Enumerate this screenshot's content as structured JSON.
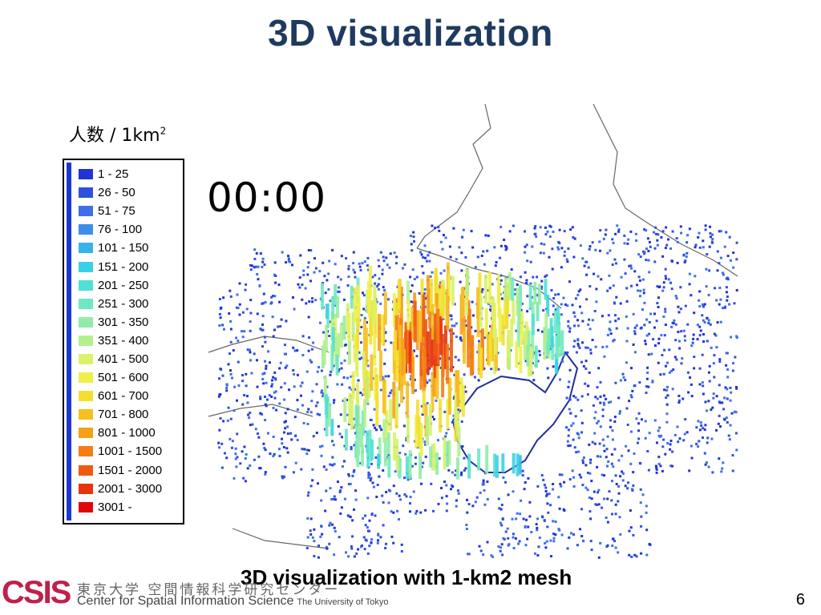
{
  "slide": {
    "title": "3D visualization",
    "caption": "3D visualization with 1-km2 mesh",
    "page_number": "6"
  },
  "legend": {
    "title": "人数 / 1km",
    "title_sup": "2",
    "items": [
      {
        "label": "1 - 25",
        "color": "#2233d6"
      },
      {
        "label": "26 - 50",
        "color": "#2f4fe0"
      },
      {
        "label": "51 - 75",
        "color": "#3f6ee8"
      },
      {
        "label": "76 - 100",
        "color": "#3b8fe8"
      },
      {
        "label": "101 - 150",
        "color": "#36b4ea"
      },
      {
        "label": "151 - 200",
        "color": "#3cd0e6"
      },
      {
        "label": "201 - 250",
        "color": "#4fe0d8"
      },
      {
        "label": "251 - 300",
        "color": "#6ee8c2"
      },
      {
        "label": "301 - 350",
        "color": "#92eca8"
      },
      {
        "label": "351 - 400",
        "color": "#b5f08c"
      },
      {
        "label": "401 - 500",
        "color": "#d8f26a"
      },
      {
        "label": "501 - 600",
        "color": "#eef04a"
      },
      {
        "label": "601 - 700",
        "color": "#f4df2e"
      },
      {
        "label": "701 - 800",
        "color": "#f6c020"
      },
      {
        "label": "801 - 1000",
        "color": "#f6a018"
      },
      {
        "label": "1001 - 1500",
        "color": "#f47e14"
      },
      {
        "label": "1501 - 2000",
        "color": "#f05a10"
      },
      {
        "label": "2001 - 3000",
        "color": "#e8340c"
      },
      {
        "label": "3001 -",
        "color": "#e00808"
      }
    ]
  },
  "clock": "00:00",
  "footer": {
    "logo": "CSIS",
    "jp_text": "東京大学 空間情報科学研究センター",
    "en_text": "Center for Spatial Information Science",
    "en_small": "The University of Tokyo"
  }
}
